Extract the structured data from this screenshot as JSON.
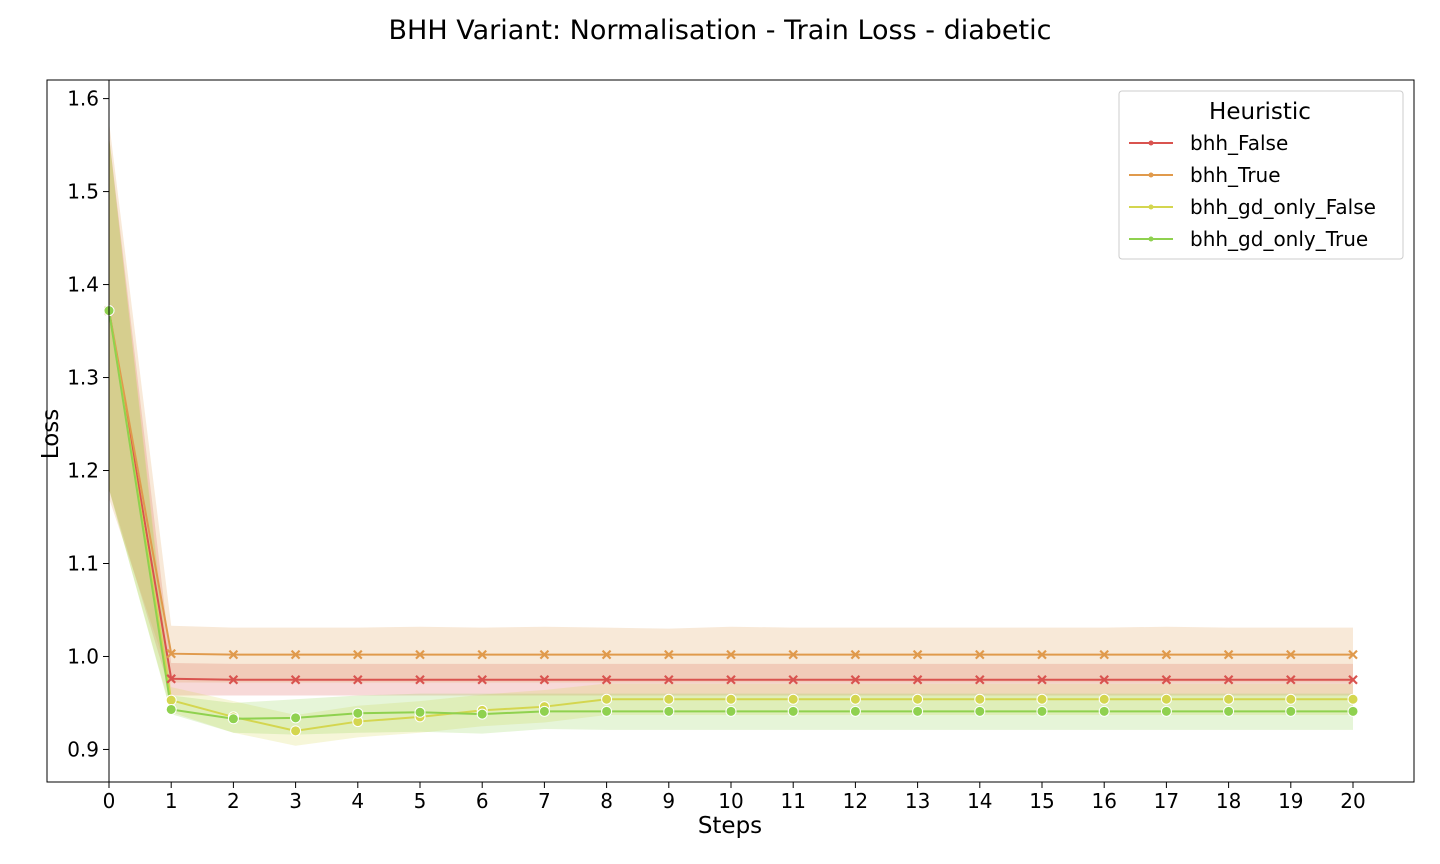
{
  "chart_data": {
    "type": "line",
    "title": "BHH Variant: Normalisation - Train Loss - diabetic",
    "xlabel": "Steps",
    "ylabel": "Loss",
    "x": [
      0,
      1,
      2,
      3,
      4,
      5,
      6,
      7,
      8,
      9,
      10,
      11,
      12,
      13,
      14,
      15,
      16,
      17,
      18,
      19,
      20
    ],
    "xlim": [
      0,
      20
    ],
    "ylim": [
      0.865,
      1.62
    ],
    "yticks": [
      0.9,
      1.0,
      1.1,
      1.2,
      1.3,
      1.4,
      1.5,
      1.6
    ],
    "ytick_labels": [
      "0.9",
      "1.0",
      "1.1",
      "1.2",
      "1.3",
      "1.4",
      "1.5",
      "1.6"
    ],
    "xtick_labels": [
      "0",
      "1",
      "2",
      "3",
      "4",
      "5",
      "6",
      "7",
      "8",
      "9",
      "10",
      "11",
      "12",
      "13",
      "14",
      "15",
      "16",
      "17",
      "18",
      "19",
      "20"
    ],
    "grid": false,
    "legend": {
      "title": "Heuristic",
      "placement": "top-right"
    },
    "series": [
      {
        "name": "bhh_False",
        "color": "#d9534f",
        "marker": "x",
        "values": [
          1.372,
          0.976,
          0.975,
          0.975,
          0.975,
          0.975,
          0.975,
          0.975,
          0.975,
          0.975,
          0.975,
          0.975,
          0.975,
          0.975,
          0.975,
          0.975,
          0.975,
          0.975,
          0.975,
          0.975,
          0.975
        ],
        "lower": [
          1.18,
          0.958,
          0.958,
          0.958,
          0.958,
          0.958,
          0.958,
          0.958,
          0.958,
          0.958,
          0.958,
          0.958,
          0.958,
          0.958,
          0.958,
          0.958,
          0.958,
          0.958,
          0.958,
          0.958,
          0.958
        ],
        "upper": [
          1.56,
          0.993,
          0.992,
          0.992,
          0.992,
          0.992,
          0.992,
          0.992,
          0.992,
          0.992,
          0.992,
          0.992,
          0.992,
          0.992,
          0.992,
          0.992,
          0.992,
          0.992,
          0.992,
          0.992,
          0.992
        ]
      },
      {
        "name": "bhh_True",
        "color": "#e09a4c",
        "marker": "x",
        "values": [
          1.372,
          1.003,
          1.002,
          1.002,
          1.002,
          1.002,
          1.002,
          1.002,
          1.002,
          1.002,
          1.002,
          1.002,
          1.002,
          1.002,
          1.002,
          1.002,
          1.002,
          1.002,
          1.002,
          1.002,
          1.002
        ],
        "lower": [
          1.17,
          0.972,
          0.972,
          0.972,
          0.972,
          0.972,
          0.972,
          0.972,
          0.972,
          0.972,
          0.972,
          0.972,
          0.972,
          0.972,
          0.972,
          0.972,
          0.972,
          0.972,
          0.972,
          0.972,
          0.972
        ],
        "upper": [
          1.575,
          1.033,
          1.031,
          1.031,
          1.031,
          1.032,
          1.031,
          1.032,
          1.031,
          1.03,
          1.032,
          1.031,
          1.031,
          1.031,
          1.031,
          1.031,
          1.031,
          1.032,
          1.031,
          1.031,
          1.031
        ]
      },
      {
        "name": "bhh_gd_only_False",
        "color": "#d4d64f",
        "marker": "o",
        "values": [
          1.372,
          0.953,
          0.935,
          0.92,
          0.93,
          0.935,
          0.942,
          0.946,
          0.954,
          0.954,
          0.954,
          0.954,
          0.954,
          0.954,
          0.954,
          0.954,
          0.954,
          0.954,
          0.954,
          0.954,
          0.954
        ],
        "lower": [
          1.18,
          0.94,
          0.918,
          0.904,
          0.913,
          0.918,
          0.925,
          0.929,
          0.937,
          0.937,
          0.937,
          0.937,
          0.937,
          0.937,
          0.937,
          0.937,
          0.937,
          0.937,
          0.937,
          0.937,
          0.937
        ],
        "upper": [
          1.56,
          0.967,
          0.952,
          0.937,
          0.947,
          0.952,
          0.959,
          0.964,
          0.971,
          0.971,
          0.971,
          0.971,
          0.971,
          0.971,
          0.971,
          0.971,
          0.971,
          0.971,
          0.971,
          0.971,
          0.971
        ]
      },
      {
        "name": "bhh_gd_only_True",
        "color": "#8fd14f",
        "marker": "o",
        "values": [
          1.372,
          0.943,
          0.933,
          0.934,
          0.939,
          0.94,
          0.938,
          0.941,
          0.941,
          0.941,
          0.941,
          0.941,
          0.941,
          0.941,
          0.941,
          0.941,
          0.941,
          0.941,
          0.941,
          0.941,
          0.941
        ],
        "lower": [
          1.18,
          0.938,
          0.918,
          0.916,
          0.918,
          0.919,
          0.917,
          0.922,
          0.921,
          0.921,
          0.921,
          0.921,
          0.921,
          0.921,
          0.921,
          0.921,
          0.921,
          0.921,
          0.921,
          0.921,
          0.921
        ],
        "upper": [
          1.56,
          0.958,
          0.95,
          0.954,
          0.958,
          0.96,
          0.96,
          0.96,
          0.96,
          0.96,
          0.96,
          0.96,
          0.96,
          0.96,
          0.96,
          0.96,
          0.96,
          0.96,
          0.96,
          0.96,
          0.96
        ]
      }
    ]
  }
}
